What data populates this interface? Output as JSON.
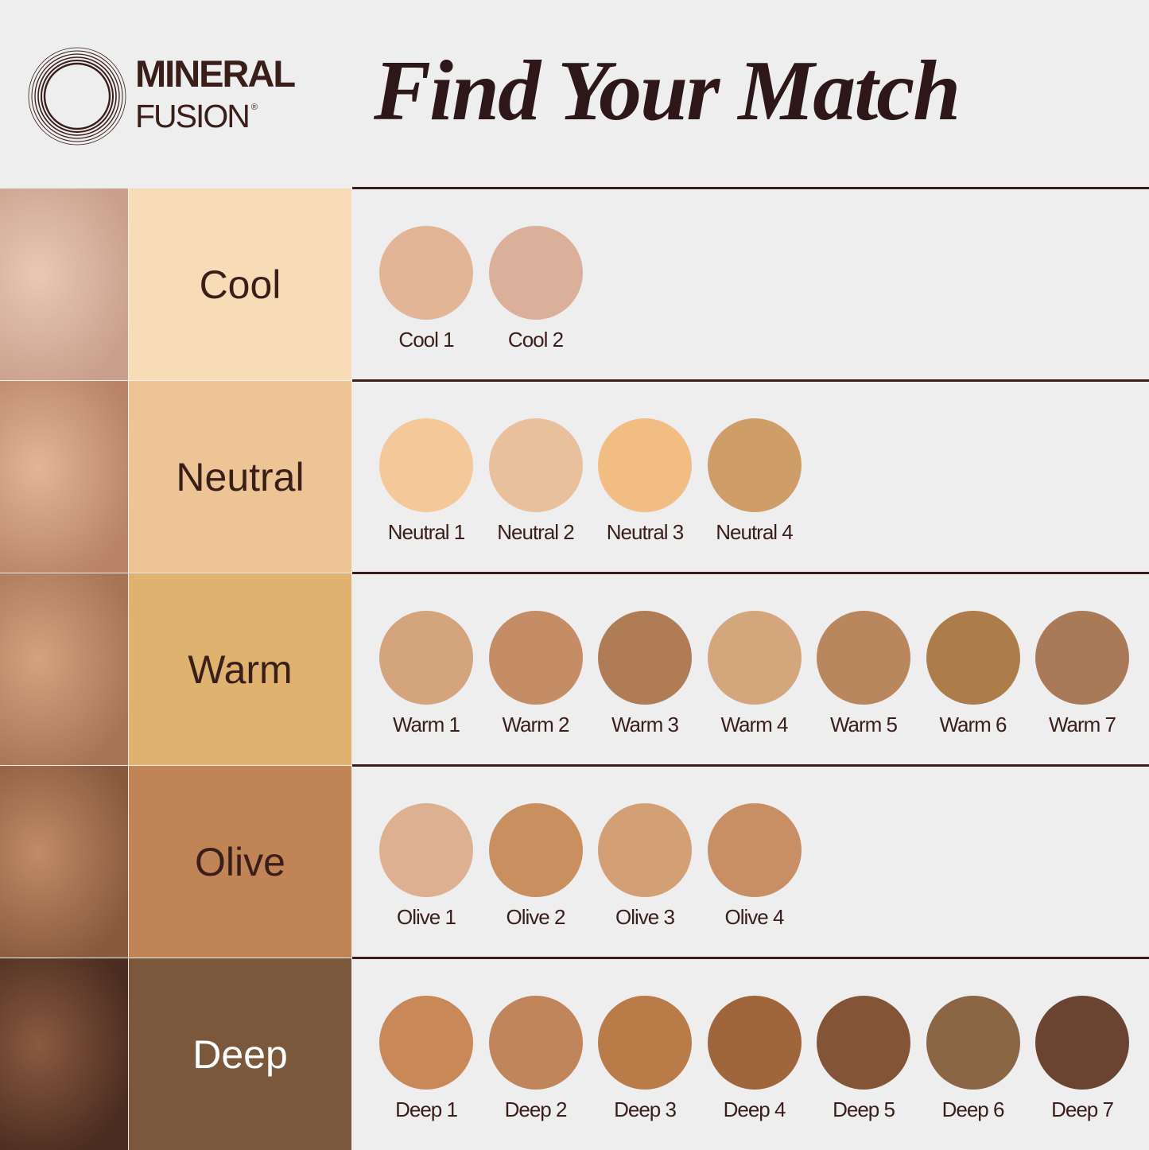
{
  "brand": {
    "line1": "MINERAL",
    "line2": "FUSION",
    "mark": "®"
  },
  "title": "Find Your Match",
  "rows": [
    {
      "category": "Cool",
      "bg": "#f8dcb8",
      "text_color": "#3a1e19",
      "photo_tone": [
        "#e9c8b4",
        "#c9a08c"
      ],
      "shades": [
        {
          "name": "Cool 1",
          "color": "#e2b596"
        },
        {
          "name": "Cool 2",
          "color": "#dbb09b"
        }
      ]
    },
    {
      "category": "Neutral",
      "bg": "#ecc495",
      "text_color": "#3a1e19",
      "photo_tone": [
        "#e3b596",
        "#b98467"
      ],
      "shades": [
        {
          "name": "Neutral 1",
          "color": "#f4c898"
        },
        {
          "name": "Neutral 2",
          "color": "#e8c09b"
        },
        {
          "name": "Neutral 3",
          "color": "#f2bd82"
        },
        {
          "name": "Neutral 4",
          "color": "#cf9e68"
        }
      ]
    },
    {
      "category": "Warm",
      "bg": "#e0b26f",
      "text_color": "#3a1e19",
      "photo_tone": [
        "#d5a27f",
        "#a87456"
      ],
      "shades": [
        {
          "name": "Warm 1",
          "color": "#d4a47c"
        },
        {
          "name": "Warm 2",
          "color": "#c48d66"
        },
        {
          "name": "Warm 3",
          "color": "#b07c56"
        },
        {
          "name": "Warm 4",
          "color": "#d4a67b"
        },
        {
          "name": "Warm 5",
          "color": "#b9875e"
        },
        {
          "name": "Warm 6",
          "color": "#ac7d48"
        },
        {
          "name": "Warm 7",
          "color": "#a97a58"
        }
      ]
    },
    {
      "category": "Olive",
      "bg": "#c08457",
      "text_color": "#3a1e19",
      "photo_tone": [
        "#c08b66",
        "#8a5a3e"
      ],
      "shades": [
        {
          "name": "Olive 1",
          "color": "#dcb091"
        },
        {
          "name": "Olive 2",
          "color": "#c98f5e"
        },
        {
          "name": "Olive 3",
          "color": "#d3a075"
        },
        {
          "name": "Olive 4",
          "color": "#c78f63"
        }
      ]
    },
    {
      "category": "Deep",
      "bg": "#7b573b",
      "text_color": "#ffffff",
      "photo_tone": [
        "#8a5a40",
        "#4a2c20"
      ],
      "shades": [
        {
          "name": "Deep 1",
          "color": "#c98858"
        },
        {
          "name": "Deep 2",
          "color": "#c0855a"
        },
        {
          "name": "Deep 3",
          "color": "#b97b48"
        },
        {
          "name": "Deep 4",
          "color": "#a0663b"
        },
        {
          "name": "Deep 5",
          "color": "#835536"
        },
        {
          "name": "Deep 6",
          "color": "#8a6644"
        },
        {
          "name": "Deep 7",
          "color": "#6b4431"
        }
      ]
    }
  ]
}
